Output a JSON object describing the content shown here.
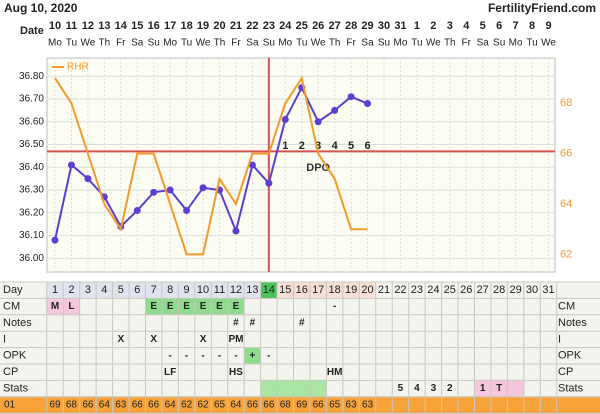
{
  "header": {
    "date": "Aug 10, 2020",
    "site": "FertilityFriend.com",
    "date_label": "Date"
  },
  "dates": [
    10,
    11,
    12,
    13,
    14,
    15,
    16,
    17,
    18,
    19,
    20,
    21,
    22,
    23,
    24,
    25,
    26,
    27,
    28,
    29,
    30,
    31,
    1,
    2,
    3,
    4,
    5,
    6,
    7,
    8,
    9
  ],
  "weekdays": [
    "Mo",
    "Tu",
    "We",
    "Th",
    "Fr",
    "Sa",
    "Su",
    "Mo",
    "Tu",
    "We",
    "Th",
    "Fr",
    "Sa",
    "Su",
    "Mo",
    "Tu",
    "We",
    "Th",
    "Fr",
    "Sa",
    "Su",
    "Mo",
    "Tu",
    "We",
    "Th",
    "Fr",
    "Sa",
    "Su",
    "Mo",
    "Tu",
    "We"
  ],
  "chart_data": {
    "type": "line",
    "ylim": [
      35.94,
      36.88
    ],
    "yticks": [
      {
        "value": 36.0,
        "label": "36.00"
      },
      {
        "value": 36.1,
        "label": "36.10"
      },
      {
        "value": 36.2,
        "label": "36.20"
      },
      {
        "value": 36.3,
        "label": "36.30"
      },
      {
        "value": 36.4,
        "label": "36.40"
      },
      {
        "value": 36.5,
        "label": "36.50"
      },
      {
        "value": 36.6,
        "label": "36.60"
      },
      {
        "value": 36.7,
        "label": "36.70"
      },
      {
        "value": 36.8,
        "label": "36.80"
      }
    ],
    "y2lim": [
      61.3,
      69.8
    ],
    "y2ticks": [
      62,
      64,
      66,
      68
    ],
    "coverline": 36.47,
    "ovulation_day": 14,
    "dpo_label": "DPO",
    "dpo": [
      1,
      2,
      3,
      4,
      5,
      6
    ],
    "grid": true,
    "legend": "top-left",
    "series": [
      {
        "color": "#5a3fd0",
        "values": [
          36.08,
          36.41,
          36.35,
          36.27,
          36.14,
          36.21,
          36.29,
          36.3,
          36.21,
          36.31,
          36.3,
          36.12,
          36.41,
          36.33,
          36.61,
          36.75,
          36.6,
          36.65,
          36.71,
          36.68
        ]
      },
      {
        "name": "RHR",
        "color": "#f39a2b",
        "axis": "y2",
        "values": [
          69,
          68,
          66,
          64,
          63,
          66,
          66,
          64,
          62,
          62,
          65,
          64,
          66,
          66,
          68,
          69,
          66,
          65,
          63,
          63
        ]
      }
    ]
  },
  "day_label": "Day",
  "days": [
    1,
    2,
    3,
    4,
    5,
    6,
    7,
    8,
    9,
    10,
    11,
    12,
    13,
    14,
    15,
    16,
    17,
    18,
    19,
    20,
    21,
    22,
    23,
    24,
    25,
    26,
    27,
    28,
    29,
    30,
    31
  ],
  "rows": [
    {
      "label": "CM",
      "cells": [
        "M",
        "L",
        null,
        null,
        null,
        null,
        "E",
        "E",
        "E",
        "E",
        "E",
        "E",
        null,
        null,
        null,
        null,
        null,
        "-",
        null,
        null,
        null,
        null,
        null,
        null,
        null,
        null,
        null,
        null,
        null,
        null,
        null
      ]
    },
    {
      "label": "Notes",
      "cells": [
        null,
        null,
        null,
        null,
        null,
        null,
        null,
        null,
        null,
        null,
        null,
        "#",
        "#",
        null,
        null,
        "#",
        null,
        null,
        null,
        null,
        null,
        null,
        null,
        null,
        null,
        null,
        null,
        null,
        null,
        null,
        null
      ]
    },
    {
      "label": "I",
      "cells": [
        null,
        null,
        null,
        null,
        "X",
        null,
        "X",
        null,
        null,
        "X",
        null,
        "PM",
        null,
        null,
        null,
        null,
        null,
        null,
        null,
        null,
        null,
        null,
        null,
        null,
        null,
        null,
        null,
        null,
        null,
        null,
        null
      ]
    },
    {
      "label": "OPK",
      "cells": [
        null,
        null,
        null,
        null,
        null,
        null,
        null,
        "-",
        "-",
        "-",
        "-",
        "-",
        "+",
        "-",
        null,
        null,
        null,
        null,
        null,
        null,
        null,
        null,
        null,
        null,
        null,
        null,
        null,
        null,
        null,
        null,
        null
      ]
    },
    {
      "label": "CP",
      "cells": [
        null,
        null,
        null,
        null,
        null,
        null,
        null,
        "LF",
        null,
        null,
        null,
        "HS",
        null,
        null,
        null,
        null,
        null,
        "HM",
        null,
        null,
        null,
        null,
        null,
        null,
        null,
        null,
        null,
        null,
        null,
        null,
        null
      ]
    },
    {
      "label": "Stats",
      "cells": [
        null,
        null,
        null,
        null,
        null,
        null,
        null,
        null,
        null,
        null,
        null,
        null,
        null,
        null,
        null,
        null,
        null,
        null,
        null,
        null,
        null,
        5,
        4,
        3,
        2,
        null,
        1,
        "T",
        null,
        null,
        null
      ]
    }
  ],
  "rhr_row_label": "01"
}
